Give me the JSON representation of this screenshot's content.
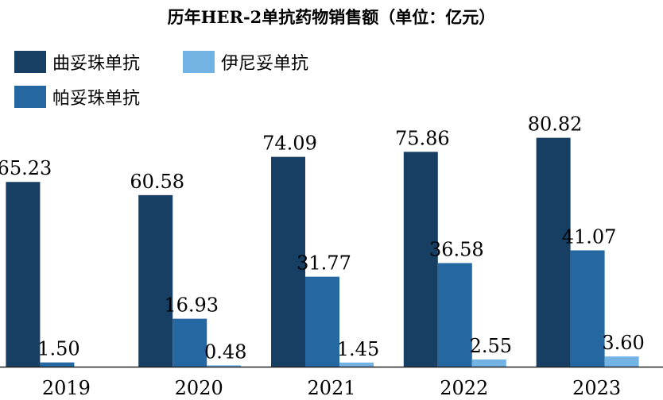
{
  "chart_data": {
    "type": "bar",
    "title": "历年HER-2单抗药物销售额（单位：亿元）",
    "categories": [
      "2019",
      "2020",
      "2021",
      "2022",
      "2023"
    ],
    "series": [
      {
        "name": "曲妥珠单抗",
        "color": "#173f63",
        "values": [
          65.23,
          60.58,
          74.09,
          75.86,
          80.82
        ],
        "labels": [
          "65.23",
          "60.58",
          "74.09",
          "75.86",
          "80.82"
        ]
      },
      {
        "name": "帕妥珠单抗",
        "color": "#2567a0",
        "values": [
          1.5,
          16.93,
          31.77,
          36.58,
          41.07
        ],
        "labels": [
          "1.50",
          "16.93",
          "31.77",
          "36.58",
          "41.07"
        ]
      },
      {
        "name": "伊尼妥单抗",
        "color": "#73b3e3",
        "values": [
          0,
          0.48,
          1.45,
          2.55,
          3.6
        ],
        "labels": [
          "",
          "0.48",
          "1.45",
          "2.55",
          "3.60"
        ]
      }
    ],
    "ylim": [
      0,
      88
    ],
    "grid": false,
    "legend_position": "top-left"
  }
}
